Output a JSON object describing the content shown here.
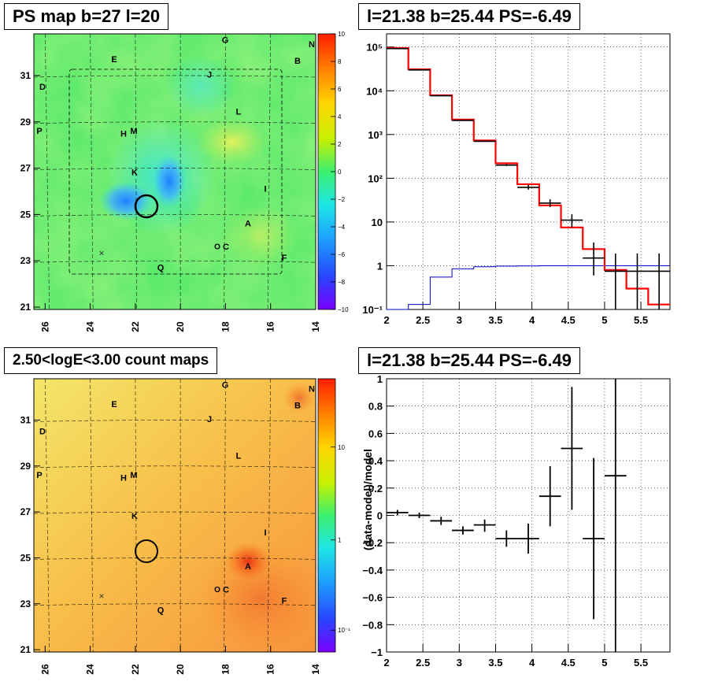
{
  "titles": {
    "ps_map": "PS map b=27 l=20",
    "spectrum": "l=21.38 b=25.44 PS=-6.49",
    "count_map": "2.50<logE<3.00 count maps",
    "residual": "l=21.38 b=25.44 PS=-6.49"
  },
  "colors": {
    "data": "#000000",
    "model": "#ff0000",
    "source_component": "#0000cc"
  },
  "sky_maps": {
    "x_ticks": [
      "26",
      "24",
      "22",
      "20",
      "18",
      "16",
      "14"
    ],
    "y_ticks": [
      "31",
      "29",
      "27",
      "25",
      "23",
      "21"
    ],
    "labels": [
      "G",
      "N",
      "E",
      "B",
      "D",
      "J",
      "L",
      "P",
      "H",
      "M",
      "K",
      "I",
      "A",
      "C",
      "Q",
      "F"
    ],
    "cross_marker": "×",
    "circle_marker": "O"
  },
  "ps_colorbar": {
    "ticks": [
      "10",
      "8",
      "6",
      "4",
      "2",
      "0",
      "−2",
      "−4",
      "−6",
      "−8",
      "−10"
    ]
  },
  "count_colorbar": {
    "ticks": [
      "10",
      "1",
      "10⁻¹"
    ]
  },
  "chart_data": [
    {
      "type": "heatmap",
      "x_label": "",
      "y_label": "",
      "x_ticks": [
        26,
        24,
        22,
        20,
        18,
        16,
        14
      ],
      "y_ticks": [
        31,
        29,
        27,
        25,
        23,
        21
      ],
      "colorbar_range": [
        -10,
        10
      ],
      "source_circle": {
        "l": 21.38,
        "b": 25.44
      }
    },
    {
      "type": "line",
      "y_scale": "log",
      "xlim": [
        2,
        5.9
      ],
      "ylim": [
        0.1,
        200000
      ],
      "x_ticks": [
        2,
        2.5,
        3,
        3.5,
        4,
        4.5,
        5,
        5.5
      ],
      "y_ticks": [
        "10⁻¹",
        "1",
        "10",
        "10²",
        "10³",
        "10⁴",
        "10⁵"
      ],
      "series": [
        {
          "edges": [
            2.0,
            2.3,
            2.6,
            2.9,
            3.2,
            3.5,
            3.8,
            4.1,
            4.4,
            4.7,
            5.0,
            5.3,
            5.6,
            5.9
          ],
          "values": [
            95000,
            31000,
            7900,
            2200,
            730,
            220,
            73,
            24,
            7.5,
            2.4,
            0.8,
            0.3,
            0.13
          ]
        },
        {
          "x": [
            2.15,
            2.45,
            2.75,
            3.05,
            3.35,
            3.65,
            3.95,
            4.25,
            4.55,
            4.85,
            5.15,
            5.45,
            5.75
          ],
          "y": [
            92000,
            30000,
            7700,
            2100,
            700,
            200,
            62,
            27,
            11,
            1.5,
            0.75,
            0.75,
            0.75
          ],
          "y_low": [
            90000,
            29500,
            7500,
            2050,
            680,
            190,
            55,
            22,
            7.5,
            0.6,
            0.1,
            0.1,
            0.1
          ],
          "y_high": [
            94000,
            30500,
            7900,
            2150,
            720,
            210,
            70,
            33,
            15,
            3.4,
            1.9,
            1.9,
            1.9
          ]
        },
        {
          "edges": [
            2.0,
            2.3,
            2.6,
            2.9,
            3.2,
            3.5,
            3.8,
            4.1,
            4.4,
            4.7,
            5.0,
            5.3,
            5.6,
            5.9
          ],
          "values": [
            0.1,
            0.13,
            0.55,
            0.85,
            0.95,
            0.98,
            0.99,
            1.0,
            1.0,
            1.0,
            1.0,
            1.0,
            1.0
          ]
        }
      ]
    },
    {
      "type": "heatmap",
      "x_label": "",
      "y_label": "",
      "x_ticks": [
        26,
        24,
        22,
        20,
        18,
        16,
        14
      ],
      "y_ticks": [
        31,
        29,
        27,
        25,
        23,
        21
      ],
      "colorbar_ticks": [
        "10",
        "1",
        "10⁻¹"
      ],
      "bright_spot": "A"
    },
    {
      "type": "scatter",
      "ylabel": "(data-model)/model",
      "xlim": [
        2,
        5.9
      ],
      "ylim": [
        -1,
        1
      ],
      "x_ticks": [
        2,
        2.5,
        3,
        3.5,
        4,
        4.5,
        5,
        5.5
      ],
      "y_ticks": [
        -1,
        -0.8,
        -0.6,
        -0.4,
        -0.2,
        0,
        0.2,
        0.4,
        0.6,
        0.8,
        1
      ],
      "series": [
        {
          "x": [
            2.15,
            2.45,
            2.75,
            3.05,
            3.35,
            3.65,
            3.95,
            4.25,
            4.55,
            4.85,
            5.15
          ],
          "y": [
            0.02,
            0.0,
            -0.04,
            -0.11,
            -0.07,
            -0.17,
            -0.17,
            0.14,
            0.49,
            -0.17,
            0.29
          ],
          "y_low": [
            0.0,
            -0.02,
            -0.07,
            -0.14,
            -0.12,
            -0.23,
            -0.28,
            -0.08,
            0.04,
            -0.76,
            -1.0
          ],
          "y_high": [
            0.04,
            0.02,
            -0.01,
            -0.08,
            -0.03,
            -0.11,
            -0.06,
            0.36,
            0.94,
            0.42,
            1.0
          ],
          "x_half_width": 0.15
        }
      ]
    }
  ]
}
